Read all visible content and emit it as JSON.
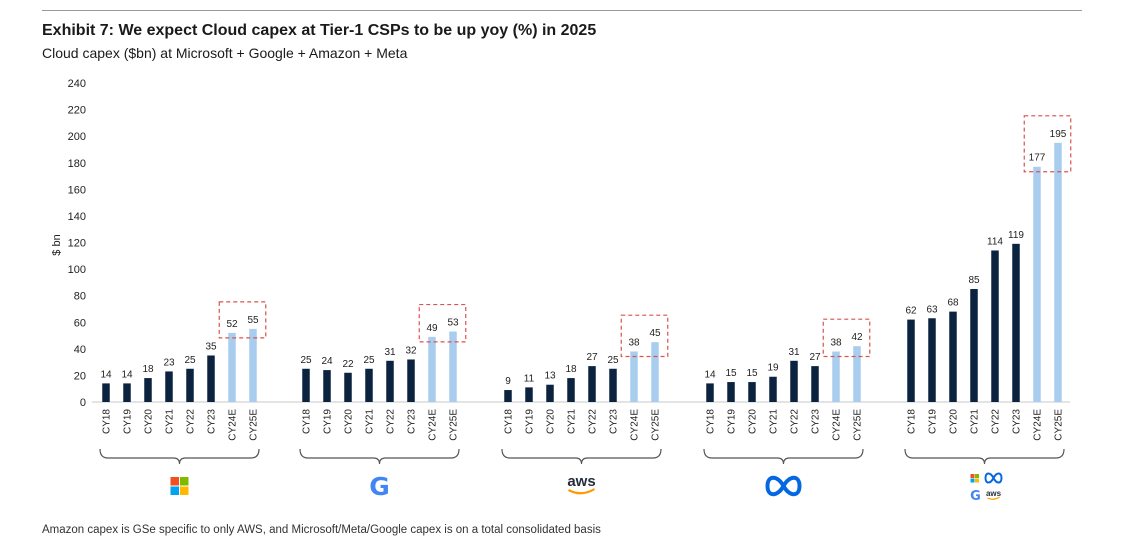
{
  "header": {
    "title": "Exhibit 7: We expect Cloud capex at Tier-1 CSPs to be up yoy (%) in 2025",
    "subtitle": "Cloud capex ($bn) at Microsoft + Google + Amazon + Meta"
  },
  "footer": {
    "source": "Amazon capex is GSe specific to only AWS, and Microsoft/Meta/Google capex is on a total consolidated basis"
  },
  "colors": {
    "actual": "#0c2340",
    "estimate": "#a9cdee",
    "highlight_box": "#d9534f",
    "bracket": "#555555"
  },
  "chart_data": {
    "type": "bar",
    "title": "Exhibit 7: We expect Cloud capex at Tier-1 CSPs to be up yoy (%) in 2025",
    "ylabel": "$ bn",
    "xlabel": "",
    "ylim": [
      0,
      240
    ],
    "yticks": [
      0,
      20,
      40,
      60,
      80,
      100,
      120,
      140,
      160,
      180,
      200,
      220,
      240
    ],
    "grid": false,
    "categories": [
      "CY18",
      "CY19",
      "CY20",
      "CY21",
      "CY22",
      "CY23",
      "CY24E",
      "CY25E"
    ],
    "estimate_categories": [
      "CY24E",
      "CY25E"
    ],
    "groups": [
      {
        "name": "Microsoft",
        "logo": "microsoft-logo",
        "values": [
          14,
          14,
          18,
          23,
          25,
          35,
          52,
          55
        ]
      },
      {
        "name": "Google",
        "logo": "google-logo",
        "logo_text": "G",
        "values": [
          25,
          24,
          22,
          25,
          31,
          32,
          49,
          53
        ]
      },
      {
        "name": "Amazon (AWS)",
        "logo": "aws-logo",
        "logo_text": "aws",
        "values": [
          9,
          11,
          13,
          18,
          27,
          25,
          38,
          45
        ]
      },
      {
        "name": "Meta",
        "logo": "meta-logo",
        "values": [
          14,
          15,
          15,
          19,
          31,
          27,
          38,
          42
        ]
      },
      {
        "name": "Total",
        "logo": "combined-logos",
        "logo_text": "aws",
        "logo_text_2": "G",
        "values": [
          62,
          63,
          68,
          85,
          114,
          119,
          177,
          195
        ]
      }
    ]
  }
}
